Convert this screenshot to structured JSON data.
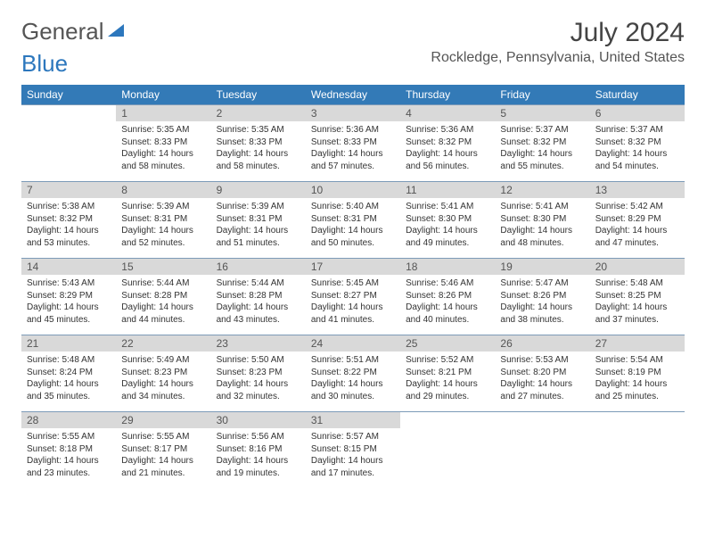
{
  "logo": {
    "part1": "General",
    "part2": "Blue"
  },
  "title": "July 2024",
  "location": "Rockledge, Pennsylvania, United States",
  "header_bg": "#337ab7",
  "daynum_bg": "#d9d9d9",
  "border_color": "#7d9bb8",
  "weekdays": [
    "Sunday",
    "Monday",
    "Tuesday",
    "Wednesday",
    "Thursday",
    "Friday",
    "Saturday"
  ],
  "weeks": [
    [
      null,
      {
        "n": "1",
        "sr": "5:35 AM",
        "ss": "8:33 PM",
        "dl": "14 hours and 58 minutes."
      },
      {
        "n": "2",
        "sr": "5:35 AM",
        "ss": "8:33 PM",
        "dl": "14 hours and 58 minutes."
      },
      {
        "n": "3",
        "sr": "5:36 AM",
        "ss": "8:33 PM",
        "dl": "14 hours and 57 minutes."
      },
      {
        "n": "4",
        "sr": "5:36 AM",
        "ss": "8:32 PM",
        "dl": "14 hours and 56 minutes."
      },
      {
        "n": "5",
        "sr": "5:37 AM",
        "ss": "8:32 PM",
        "dl": "14 hours and 55 minutes."
      },
      {
        "n": "6",
        "sr": "5:37 AM",
        "ss": "8:32 PM",
        "dl": "14 hours and 54 minutes."
      }
    ],
    [
      {
        "n": "7",
        "sr": "5:38 AM",
        "ss": "8:32 PM",
        "dl": "14 hours and 53 minutes."
      },
      {
        "n": "8",
        "sr": "5:39 AM",
        "ss": "8:31 PM",
        "dl": "14 hours and 52 minutes."
      },
      {
        "n": "9",
        "sr": "5:39 AM",
        "ss": "8:31 PM",
        "dl": "14 hours and 51 minutes."
      },
      {
        "n": "10",
        "sr": "5:40 AM",
        "ss": "8:31 PM",
        "dl": "14 hours and 50 minutes."
      },
      {
        "n": "11",
        "sr": "5:41 AM",
        "ss": "8:30 PM",
        "dl": "14 hours and 49 minutes."
      },
      {
        "n": "12",
        "sr": "5:41 AM",
        "ss": "8:30 PM",
        "dl": "14 hours and 48 minutes."
      },
      {
        "n": "13",
        "sr": "5:42 AM",
        "ss": "8:29 PM",
        "dl": "14 hours and 47 minutes."
      }
    ],
    [
      {
        "n": "14",
        "sr": "5:43 AM",
        "ss": "8:29 PM",
        "dl": "14 hours and 45 minutes."
      },
      {
        "n": "15",
        "sr": "5:44 AM",
        "ss": "8:28 PM",
        "dl": "14 hours and 44 minutes."
      },
      {
        "n": "16",
        "sr": "5:44 AM",
        "ss": "8:28 PM",
        "dl": "14 hours and 43 minutes."
      },
      {
        "n": "17",
        "sr": "5:45 AM",
        "ss": "8:27 PM",
        "dl": "14 hours and 41 minutes."
      },
      {
        "n": "18",
        "sr": "5:46 AM",
        "ss": "8:26 PM",
        "dl": "14 hours and 40 minutes."
      },
      {
        "n": "19",
        "sr": "5:47 AM",
        "ss": "8:26 PM",
        "dl": "14 hours and 38 minutes."
      },
      {
        "n": "20",
        "sr": "5:48 AM",
        "ss": "8:25 PM",
        "dl": "14 hours and 37 minutes."
      }
    ],
    [
      {
        "n": "21",
        "sr": "5:48 AM",
        "ss": "8:24 PM",
        "dl": "14 hours and 35 minutes."
      },
      {
        "n": "22",
        "sr": "5:49 AM",
        "ss": "8:23 PM",
        "dl": "14 hours and 34 minutes."
      },
      {
        "n": "23",
        "sr": "5:50 AM",
        "ss": "8:23 PM",
        "dl": "14 hours and 32 minutes."
      },
      {
        "n": "24",
        "sr": "5:51 AM",
        "ss": "8:22 PM",
        "dl": "14 hours and 30 minutes."
      },
      {
        "n": "25",
        "sr": "5:52 AM",
        "ss": "8:21 PM",
        "dl": "14 hours and 29 minutes."
      },
      {
        "n": "26",
        "sr": "5:53 AM",
        "ss": "8:20 PM",
        "dl": "14 hours and 27 minutes."
      },
      {
        "n": "27",
        "sr": "5:54 AM",
        "ss": "8:19 PM",
        "dl": "14 hours and 25 minutes."
      }
    ],
    [
      {
        "n": "28",
        "sr": "5:55 AM",
        "ss": "8:18 PM",
        "dl": "14 hours and 23 minutes."
      },
      {
        "n": "29",
        "sr": "5:55 AM",
        "ss": "8:17 PM",
        "dl": "14 hours and 21 minutes."
      },
      {
        "n": "30",
        "sr": "5:56 AM",
        "ss": "8:16 PM",
        "dl": "14 hours and 19 minutes."
      },
      {
        "n": "31",
        "sr": "5:57 AM",
        "ss": "8:15 PM",
        "dl": "14 hours and 17 minutes."
      },
      null,
      null,
      null
    ]
  ],
  "labels": {
    "sunrise": "Sunrise:",
    "sunset": "Sunset:",
    "daylight": "Daylight:"
  }
}
